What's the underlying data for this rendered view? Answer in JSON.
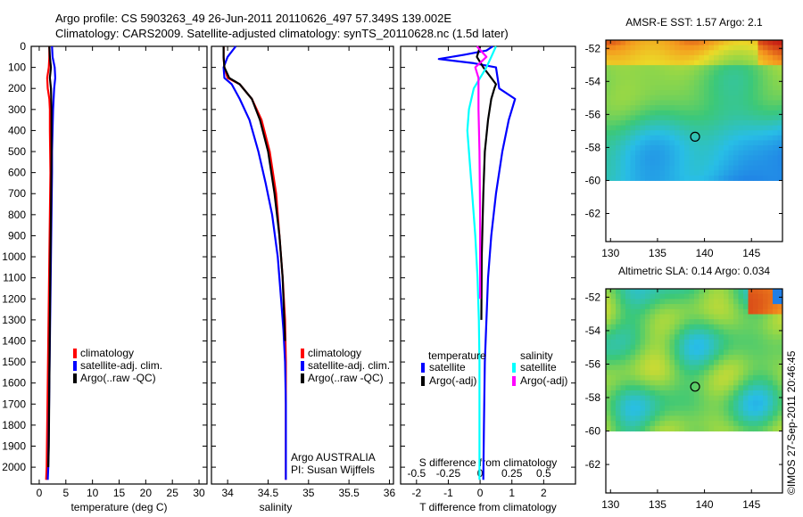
{
  "header": {
    "line1": "Argo profile: CS 5903263_49 26-Jun-2011 20110626_497 57.349S 139.002E",
    "line2": "Climatology: CARS2009. Satellite-adjusted climatology: synTS_20110628.nc (1.5d later)"
  },
  "stamp": "©IMOS 27-Sep-2011 20:46:45",
  "colors": {
    "climatology": "#ff0000",
    "satellite": "#0000ff",
    "argo": "#000000",
    "satellite_diff_s": "#00ffff",
    "argo_diff_s": "#ff00ff"
  },
  "chart_data": [
    {
      "type": "line",
      "panel": "temperature",
      "xlabel": "temperature (deg C)",
      "xlim": [
        -1.5,
        31.5
      ],
      "xticks": [
        0,
        5,
        10,
        15,
        20,
        25,
        30
      ],
      "ylim": [
        0,
        2080
      ],
      "y_inverted": true,
      "yticks": [
        0,
        100,
        200,
        300,
        400,
        500,
        600,
        700,
        800,
        900,
        1000,
        1100,
        1200,
        1300,
        1400,
        1500,
        1600,
        1700,
        1800,
        1900,
        2000
      ],
      "legend": [
        "climatology",
        "satellite-adj. clim.",
        "Argo(..raw -QC)"
      ],
      "series": [
        {
          "name": "climatology",
          "color": "#ff0000",
          "x": [
            1.9,
            1.9,
            1.8,
            1.5,
            1.6,
            1.9,
            2.0,
            2.0,
            2.1,
            2.0,
            1.9,
            1.8,
            1.7,
            1.6,
            1.5,
            1.4,
            1.3
          ],
          "y": [
            0,
            50,
            100,
            150,
            200,
            250,
            300,
            400,
            600,
            800,
            1000,
            1200,
            1400,
            1600,
            1800,
            2000,
            2060
          ]
        },
        {
          "name": "satellite-adj. clim.",
          "color": "#0000ff",
          "x": [
            2.4,
            2.5,
            2.9,
            3.0,
            2.8,
            2.6,
            2.5,
            2.4,
            2.4,
            2.3,
            2.2,
            2.1,
            2.0,
            1.9,
            1.8,
            1.7,
            1.6
          ],
          "y": [
            0,
            50,
            100,
            150,
            200,
            300,
            400,
            500,
            600,
            800,
            1000,
            1200,
            1400,
            1600,
            1800,
            2000,
            2060
          ]
        },
        {
          "name": "Argo(..raw -QC)",
          "color": "#000000",
          "x": [
            1.9,
            2.0,
            2.2,
            2.0,
            2.2,
            2.3,
            2.3,
            2.2,
            2.1,
            2.0,
            1.9,
            1.8,
            1.7
          ],
          "y": [
            0,
            50,
            100,
            150,
            200,
            300,
            500,
            800,
            1000,
            1300,
            1600,
            1900,
            2000
          ]
        }
      ]
    },
    {
      "type": "line",
      "panel": "salinity",
      "xlabel": "salinity",
      "xlim": [
        33.8,
        36.05
      ],
      "xticks": [
        34,
        34.5,
        35,
        35.5,
        36
      ],
      "ylim": [
        0,
        2080
      ],
      "y_inverted": true,
      "legend": [
        "climatology",
        "satellite-adj. clim.",
        "Argo(..raw -QC)"
      ],
      "annotation": [
        "Argo AUSTRALIA",
        "PI: Susan Wijffels"
      ],
      "series": [
        {
          "name": "climatology",
          "color": "#ff0000",
          "x": [
            33.95,
            33.95,
            33.96,
            34.0,
            34.15,
            34.3,
            34.42,
            34.52,
            34.6,
            34.64,
            34.68,
            34.71,
            34.72,
            34.72,
            34.72,
            34.72
          ],
          "y": [
            0,
            50,
            100,
            150,
            180,
            250,
            350,
            500,
            700,
            900,
            1100,
            1300,
            1500,
            1700,
            1900,
            2060
          ]
        },
        {
          "name": "satellite-adj. clim.",
          "color": "#0000ff",
          "x": [
            34.1,
            34.0,
            33.95,
            33.96,
            34.05,
            34.15,
            34.27,
            34.38,
            34.47,
            34.55,
            34.62,
            34.66,
            34.69,
            34.71,
            34.72,
            34.72,
            34.72
          ],
          "y": [
            0,
            50,
            100,
            150,
            180,
            250,
            350,
            500,
            650,
            800,
            1000,
            1200,
            1350,
            1500,
            1700,
            1900,
            2060
          ]
        },
        {
          "name": "Argo(..raw -QC)",
          "color": "#000000",
          "x": [
            33.95,
            33.95,
            33.96,
            34.02,
            34.15,
            34.3,
            34.4,
            34.5,
            34.58,
            34.64,
            34.68,
            34.7,
            34.71
          ],
          "y": [
            0,
            50,
            100,
            150,
            180,
            250,
            350,
            500,
            700,
            900,
            1100,
            1300,
            1400
          ]
        }
      ]
    },
    {
      "type": "line",
      "panel": "difference",
      "xlabel": "T difference from climatology",
      "xlim": [
        -2.5,
        3.0
      ],
      "xticks": [
        -2,
        -1,
        0,
        1,
        2
      ],
      "top_axis_label": "S difference from climatology",
      "top_axis_ticks": [
        "-0.5",
        "-0.25",
        "0",
        "0.25",
        "0.5"
      ],
      "ylim": [
        0,
        2080
      ],
      "y_inverted": true,
      "legend_headers": [
        "temperature",
        "salinity"
      ],
      "legend": [
        "satellite",
        "Argo(-adj)",
        "satellite",
        "Argo(-adj)"
      ],
      "series": [
        {
          "name": "satellite",
          "group": "temperature",
          "color": "#0000ff",
          "x": [
            0.4,
            0.2,
            -0.5,
            -1.3,
            -0.2,
            0.5,
            0.6,
            1.1,
            0.9,
            0.7,
            0.5,
            0.35,
            0.25,
            0.2,
            0.15,
            0.12,
            0.1
          ],
          "y": [
            0,
            20,
            40,
            60,
            80,
            100,
            200,
            250,
            350,
            500,
            700,
            900,
            1100,
            1300,
            1500,
            1800,
            2060
          ]
        },
        {
          "name": "Argo(-adj)",
          "group": "temperature",
          "color": "#000000",
          "x": [
            0.0,
            -0.1,
            0.1,
            0.35,
            0.5,
            0.45,
            0.35,
            0.25,
            0.15,
            0.1,
            0.05,
            0.04
          ],
          "y": [
            0,
            50,
            100,
            150,
            180,
            200,
            250,
            350,
            500,
            700,
            1000,
            1300
          ]
        },
        {
          "name": "satellite",
          "group": "salinity",
          "color": "#00ffff",
          "x": [
            0.5,
            0.35,
            0.2,
            -0.2,
            -0.35,
            -0.4,
            -0.35,
            -0.25,
            -0.15,
            -0.08,
            -0.04,
            -0.02,
            -0.02,
            -0.02
          ],
          "y": [
            0,
            50,
            100,
            200,
            300,
            400,
            500,
            700,
            900,
            1100,
            1300,
            1500,
            1800,
            2060
          ]
        },
        {
          "name": "Argo(-adj)",
          "group": "salinity",
          "color": "#ff00ff",
          "x": [
            -0.1,
            0.2,
            -0.15,
            -0.05,
            -0.05,
            -0.02,
            0.0,
            0.0
          ],
          "y": [
            0,
            50,
            100,
            150,
            300,
            500,
            800,
            1200
          ]
        }
      ]
    },
    {
      "type": "heatmap",
      "panel": "sst_map",
      "title": "AMSR-E SST: 1.57 Argo: 2.1",
      "xlim": [
        129.5,
        148.3
      ],
      "ylim": [
        -63.7,
        -51.5
      ],
      "xticks": [
        130,
        135,
        140,
        145
      ],
      "yticks": [
        -52,
        -54,
        -56,
        -58,
        -60,
        -62
      ],
      "data_extent_lat_min": -60,
      "argo_marker": {
        "lon": 139.0,
        "lat": -57.35
      }
    },
    {
      "type": "heatmap",
      "panel": "sla_map",
      "title": "Altimetric SLA: 0.14 Argo: 0.034",
      "xlim": [
        129.5,
        148.3
      ],
      "ylim": [
        -63.7,
        -51.5
      ],
      "xticks": [
        130,
        135,
        140,
        145
      ],
      "yticks": [
        -52,
        -54,
        -56,
        -58,
        -60,
        -62
      ],
      "data_extent_lat_min": -60,
      "argo_marker": {
        "lon": 139.0,
        "lat": -57.35
      }
    }
  ]
}
